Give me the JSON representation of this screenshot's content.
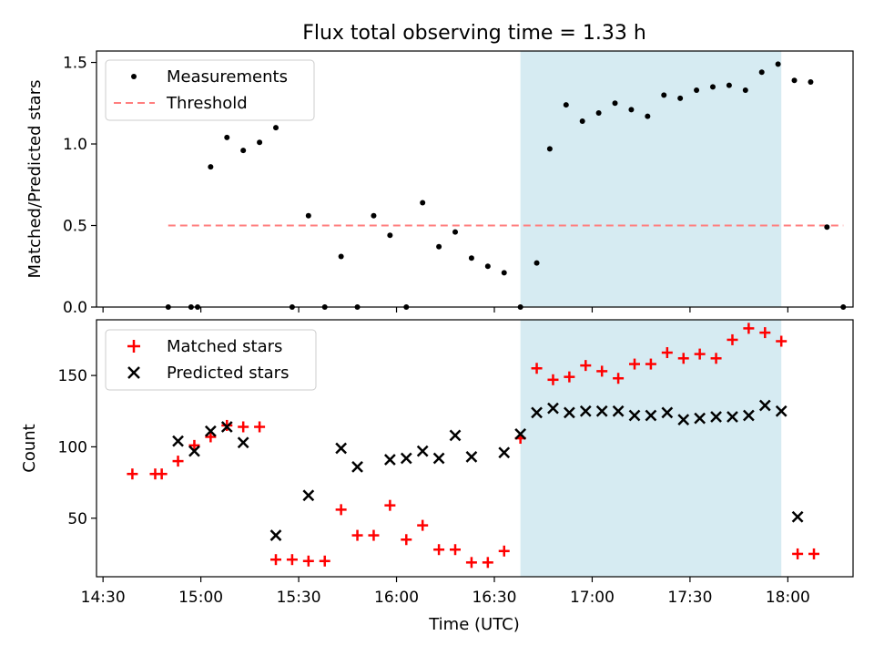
{
  "chart_data": [
    {
      "type": "scatter",
      "title": "Flux total observing time = 1.33 h",
      "ylabel": "Matched/Predicted stars",
      "ylim": [
        0,
        1.57
      ],
      "yticks": [
        0.0,
        0.5,
        1.0,
        1.5
      ],
      "ytick_labels": [
        "0.0",
        "0.5",
        "1.0",
        "1.5"
      ],
      "legend_position": "upper left",
      "highlight_span": {
        "from": "16:38",
        "to": "17:58",
        "color": "#add8e6"
      },
      "series": [
        {
          "name": "Measurements",
          "marker": "dot",
          "color": "#000000",
          "points": [
            [
              "14:50",
              0.0
            ],
            [
              "14:57",
              0.0
            ],
            [
              "14:59",
              0.0
            ],
            [
              "15:03",
              0.86
            ],
            [
              "15:08",
              1.04
            ],
            [
              "15:13",
              0.96
            ],
            [
              "15:18",
              1.01
            ],
            [
              "15:23",
              1.1
            ],
            [
              "15:28",
              0.0
            ],
            [
              "15:33",
              0.56
            ],
            [
              "15:38",
              0.0
            ],
            [
              "15:43",
              0.31
            ],
            [
              "15:48",
              0.0
            ],
            [
              "15:53",
              0.56
            ],
            [
              "15:58",
              0.44
            ],
            [
              "16:03",
              0.0
            ],
            [
              "16:08",
              0.64
            ],
            [
              "16:13",
              0.37
            ],
            [
              "16:18",
              0.46
            ],
            [
              "16:23",
              0.3
            ],
            [
              "16:28",
              0.25
            ],
            [
              "16:33",
              0.21
            ],
            [
              "16:38",
              0.0
            ],
            [
              "16:43",
              0.27
            ],
            [
              "16:47",
              0.97
            ],
            [
              "16:52",
              1.24
            ],
            [
              "16:57",
              1.14
            ],
            [
              "17:02",
              1.19
            ],
            [
              "17:07",
              1.25
            ],
            [
              "17:12",
              1.21
            ],
            [
              "17:17",
              1.17
            ],
            [
              "17:22",
              1.3
            ],
            [
              "17:27",
              1.28
            ],
            [
              "17:32",
              1.33
            ],
            [
              "17:37",
              1.35
            ],
            [
              "17:42",
              1.36
            ],
            [
              "17:47",
              1.33
            ],
            [
              "17:52",
              1.44
            ],
            [
              "17:57",
              1.49
            ],
            [
              "18:02",
              1.39
            ],
            [
              "18:07",
              1.38
            ],
            [
              "18:12",
              0.49
            ],
            [
              "18:17",
              0.0
            ]
          ]
        },
        {
          "name": "Threshold",
          "line_style": "dashed",
          "color": "#ff7f7f",
          "points": [
            [
              "14:50",
              0.5
            ],
            [
              "18:17",
              0.5
            ]
          ]
        }
      ]
    },
    {
      "type": "scatter",
      "xlabel": "Time (UTC)",
      "ylabel": "Count",
      "ylim": [
        9,
        189
      ],
      "yticks": [
        50,
        100,
        150
      ],
      "ytick_labels": [
        "50",
        "100",
        "150"
      ],
      "xticks": [
        "14:30",
        "15:00",
        "15:30",
        "16:00",
        "16:30",
        "17:00",
        "17:30",
        "18:00"
      ],
      "xlim": [
        "14:28",
        "18:20"
      ],
      "legend_position": "upper left",
      "highlight_span": {
        "from": "16:38",
        "to": "17:58",
        "color": "#add8e6"
      },
      "series": [
        {
          "name": "Matched stars",
          "marker": "plus",
          "color": "#ff0000",
          "points": [
            [
              "14:39",
              81
            ],
            [
              "14:46",
              81
            ],
            [
              "14:48",
              81
            ],
            [
              "14:53",
              90
            ],
            [
              "14:58",
              101
            ],
            [
              "15:03",
              107
            ],
            [
              "15:08",
              115
            ],
            [
              "15:13",
              114
            ],
            [
              "15:18",
              114
            ],
            [
              "15:23",
              21
            ],
            [
              "15:28",
              21
            ],
            [
              "15:33",
              20
            ],
            [
              "15:38",
              20
            ],
            [
              "15:43",
              56
            ],
            [
              "15:48",
              38
            ],
            [
              "15:53",
              38
            ],
            [
              "15:58",
              59
            ],
            [
              "16:03",
              35
            ],
            [
              "16:08",
              45
            ],
            [
              "16:13",
              28
            ],
            [
              "16:18",
              28
            ],
            [
              "16:23",
              19
            ],
            [
              "16:28",
              19
            ],
            [
              "16:33",
              27
            ],
            [
              "16:38",
              106
            ],
            [
              "16:43",
              155
            ],
            [
              "16:48",
              147
            ],
            [
              "16:53",
              149
            ],
            [
              "16:58",
              157
            ],
            [
              "17:03",
              153
            ],
            [
              "17:08",
              148
            ],
            [
              "17:13",
              158
            ],
            [
              "17:18",
              158
            ],
            [
              "17:23",
              166
            ],
            [
              "17:28",
              162
            ],
            [
              "17:33",
              165
            ],
            [
              "17:38",
              162
            ],
            [
              "17:43",
              175
            ],
            [
              "17:48",
              183
            ],
            [
              "17:53",
              180
            ],
            [
              "17:58",
              174
            ],
            [
              "18:03",
              25
            ],
            [
              "18:08",
              25
            ]
          ]
        },
        {
          "name": "Predicted stars",
          "marker": "x",
          "color": "#000000",
          "points": [
            [
              "14:53",
              104
            ],
            [
              "14:58",
              97
            ],
            [
              "15:03",
              111
            ],
            [
              "15:08",
              114
            ],
            [
              "15:13",
              103
            ],
            [
              "15:23",
              38
            ],
            [
              "15:33",
              66
            ],
            [
              "15:43",
              99
            ],
            [
              "15:48",
              86
            ],
            [
              "15:58",
              91
            ],
            [
              "16:03",
              92
            ],
            [
              "16:08",
              97
            ],
            [
              "16:13",
              92
            ],
            [
              "16:18",
              108
            ],
            [
              "16:23",
              93
            ],
            [
              "16:33",
              96
            ],
            [
              "16:38",
              109
            ],
            [
              "16:43",
              124
            ],
            [
              "16:48",
              127
            ],
            [
              "16:53",
              124
            ],
            [
              "16:58",
              125
            ],
            [
              "17:03",
              125
            ],
            [
              "17:08",
              125
            ],
            [
              "17:13",
              122
            ],
            [
              "17:18",
              122
            ],
            [
              "17:23",
              124
            ],
            [
              "17:28",
              119
            ],
            [
              "17:33",
              120
            ],
            [
              "17:38",
              121
            ],
            [
              "17:43",
              121
            ],
            [
              "17:48",
              122
            ],
            [
              "17:53",
              129
            ],
            [
              "17:58",
              125
            ],
            [
              "18:03",
              51
            ]
          ]
        }
      ]
    }
  ]
}
